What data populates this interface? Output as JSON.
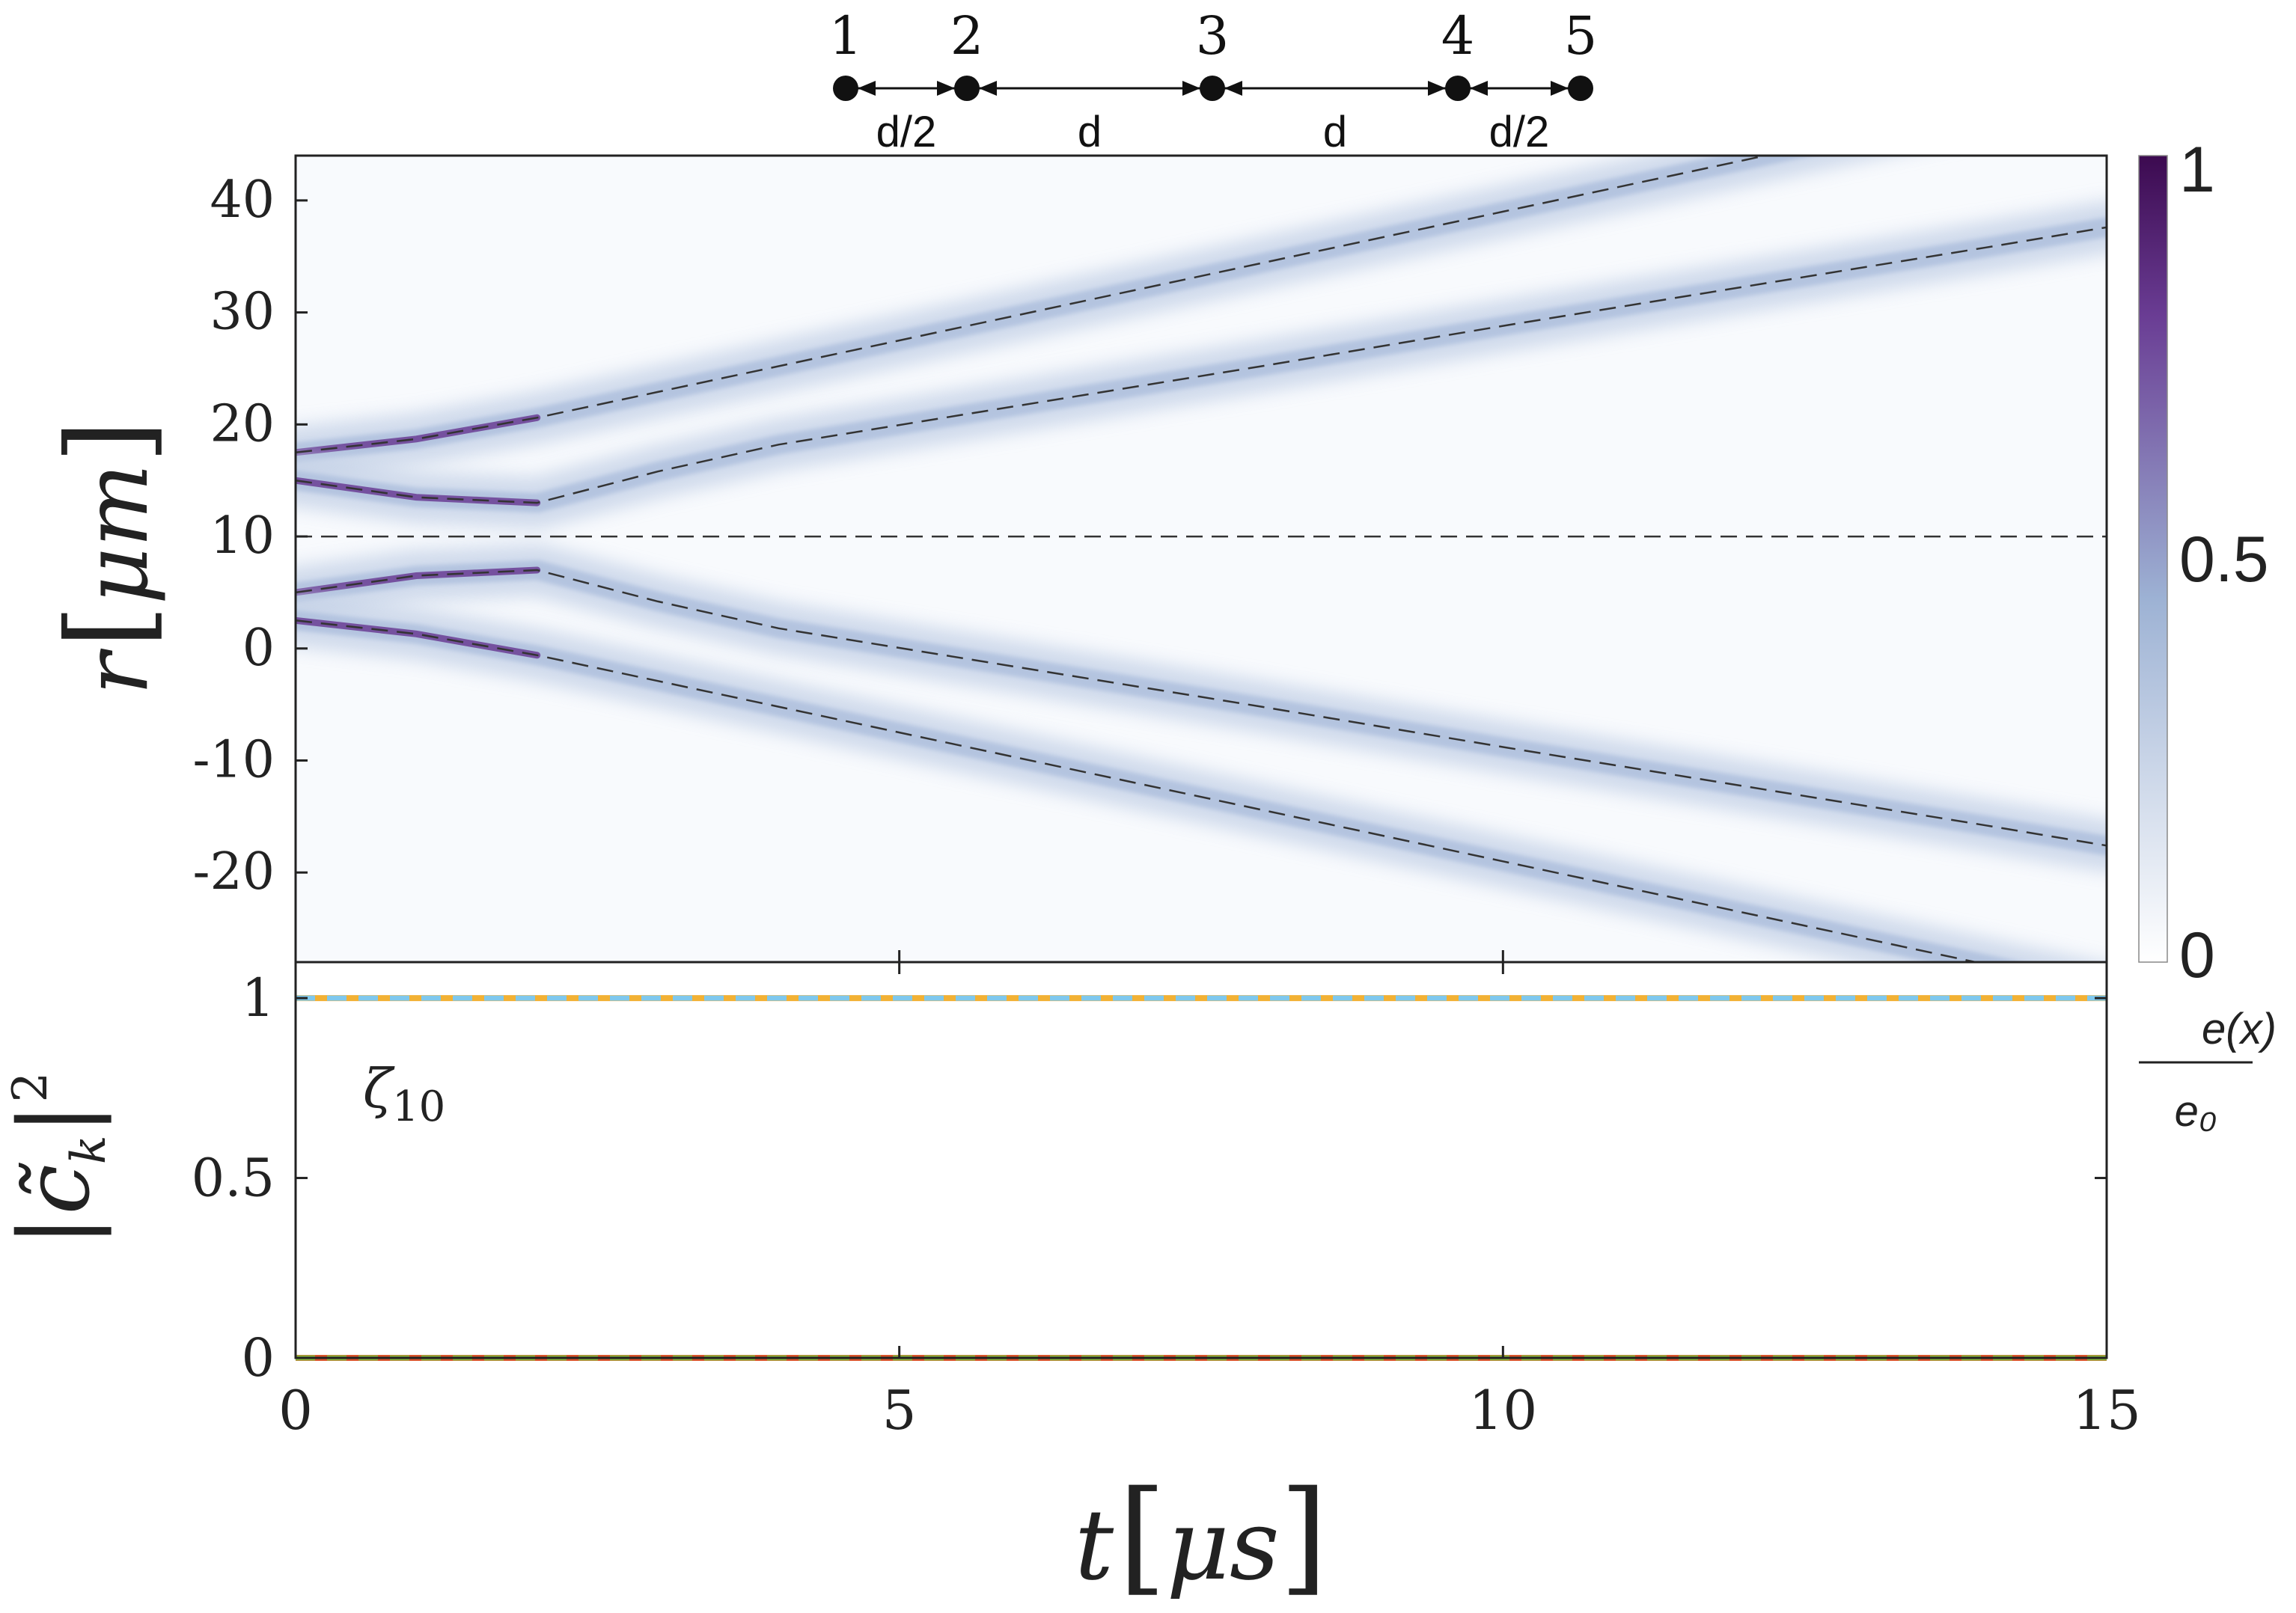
{
  "chain": {
    "sites": [
      "1",
      "2",
      "3",
      "4",
      "5"
    ],
    "spacings": [
      "d/2",
      "d",
      "d",
      "d/2"
    ]
  },
  "chart_data": [
    {
      "type": "heatmap",
      "xlim": [
        0,
        15
      ],
      "ylim": [
        -28,
        44
      ],
      "ylabel_base": "r",
      "ylabel_unit": "μm",
      "yticks": [
        -20,
        -10,
        0,
        10,
        20,
        30,
        40
      ],
      "ytick_labels": [
        "-20",
        "-10",
        "0",
        "10",
        "20",
        "30",
        "40"
      ],
      "xticks": [
        0,
        5,
        10,
        15
      ],
      "colorbar": {
        "range": [
          0,
          1
        ],
        "ticks": [
          0,
          0.5,
          1
        ],
        "tick_labels": [
          "0",
          "0.5",
          "1"
        ],
        "label_numerator": "e(x)",
        "label_denominator": "e₀",
        "colors": [
          "#ffffff",
          "#9db2d4",
          "#6a3d94",
          "#3c0a50"
        ]
      },
      "trajectories": [
        {
          "t": [
            0,
            1,
            2,
            3,
            4,
            6,
            8,
            10,
            12,
            14,
            15
          ],
          "r": [
            17.5,
            18.7,
            20.6,
            22.9,
            25.2,
            29.8,
            34.4,
            39.0,
            43.6,
            48.2,
            50.5
          ]
        },
        {
          "t": [
            0,
            1,
            2,
            3,
            4,
            6,
            8,
            10,
            12,
            14,
            15
          ],
          "r": [
            15.0,
            13.5,
            13.0,
            15.8,
            18.2,
            21.7,
            25.2,
            28.8,
            32.3,
            35.8,
            37.6
          ]
        },
        {
          "t": [
            0,
            15
          ],
          "r": [
            10.0,
            10.0
          ]
        },
        {
          "t": [
            0,
            1,
            2,
            3,
            4,
            6,
            8,
            10,
            12,
            14,
            15
          ],
          "r": [
            5.0,
            6.5,
            7.0,
            4.2,
            1.8,
            -1.7,
            -5.2,
            -8.8,
            -12.3,
            -15.8,
            -17.6
          ]
        },
        {
          "t": [
            0,
            1,
            2,
            3,
            4,
            6,
            8,
            10,
            12,
            14,
            15
          ],
          "r": [
            2.5,
            1.3,
            -0.6,
            -2.9,
            -5.2,
            -9.8,
            -14.4,
            -19.0,
            -23.6,
            -28.2,
            -30.5
          ]
        }
      ]
    },
    {
      "type": "line",
      "xlabel_base": "t",
      "xlabel_unit": "μs",
      "xlim": [
        0,
        15
      ],
      "ylim": [
        0,
        1.1
      ],
      "xticks": [
        0,
        5,
        10,
        15
      ],
      "xtick_labels": [
        "0",
        "5",
        "10",
        "15"
      ],
      "yticks": [
        0,
        0.5,
        1
      ],
      "ytick_labels": [
        "0",
        "0.5",
        "1"
      ],
      "annotation": "ζ",
      "annotation_sub": "10",
      "series": [
        {
          "color": "#f2b134",
          "dashed": false,
          "x": [
            0,
            15
          ],
          "y": [
            1,
            1
          ]
        },
        {
          "color": "#7ec8ee",
          "dashed": true,
          "x": [
            0,
            15
          ],
          "y": [
            1,
            1
          ]
        },
        {
          "color": "#d9532b",
          "dashed": false,
          "x": [
            0,
            15
          ],
          "y": [
            0,
            0
          ]
        },
        {
          "color": "#8cb83c",
          "dashed": true,
          "x": [
            0,
            15
          ],
          "y": [
            0,
            0
          ]
        }
      ]
    }
  ]
}
